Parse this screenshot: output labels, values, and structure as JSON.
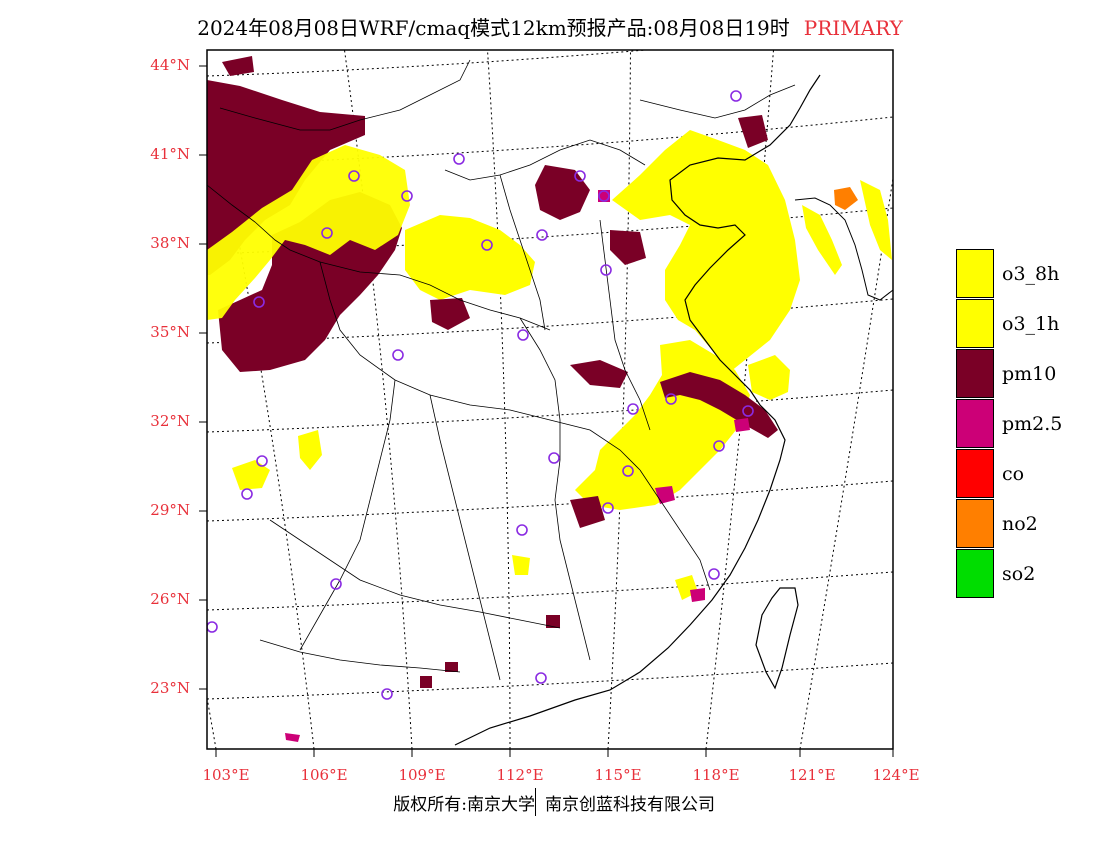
{
  "title": {
    "main": "2024年08月08日WRF/cmaq模式12km预报产品:08月08日19时",
    "tag": "PRIMARY"
  },
  "axes": {
    "lat_labels": [
      "44°N",
      "41°N",
      "38°N",
      "35°N",
      "32°N",
      "29°N",
      "26°N",
      "23°N"
    ],
    "lon_labels": [
      "103°E",
      "106°E",
      "109°E",
      "112°E",
      "115°E",
      "118°E",
      "121°E",
      "124°E"
    ]
  },
  "legend": [
    {
      "label": "o3_8h",
      "color": "#ffff00"
    },
    {
      "label": "o3_1h",
      "color": "#ffff00"
    },
    {
      "label": "pm10",
      "color": "#7a0026"
    },
    {
      "label": "pm2.5",
      "color": "#cc0077"
    },
    {
      "label": "co",
      "color": "#ff0000"
    },
    {
      "label": "no2",
      "color": "#ff7f00"
    },
    {
      "label": "so2",
      "color": "#00dd00"
    }
  ],
  "colors": {
    "o3": "#ffff00",
    "pm10": "#7a0026",
    "pm25": "#cc0077",
    "no2": "#ff7f00",
    "station": "#8a2be2",
    "accent": "#e8303a"
  },
  "footer": {
    "left": "版权所有:南京大学",
    "right": "南京创蓝科技有限公司"
  }
}
